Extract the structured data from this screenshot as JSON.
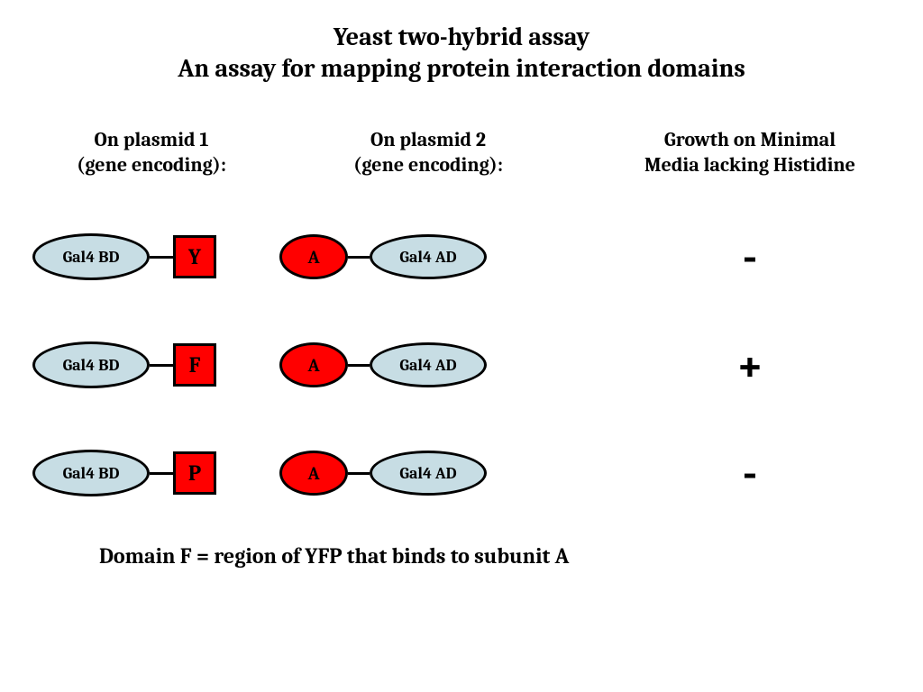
{
  "title": {
    "line1": "Yeast two-hybrid assay",
    "line2": "An assay for mapping protein interaction domains",
    "fontsize": 28
  },
  "headers": {
    "col1_line1": "On plasmid 1",
    "col1_line2": "(gene encoding):",
    "col2_line1": "On plasmid 2",
    "col2_line2": "(gene encoding):",
    "col3_line1": "Growth on Minimal",
    "col3_line2": "Media lacking Histidine",
    "fontsize": 22
  },
  "labels": {
    "gal4_bd": "Gal4 BD",
    "gal4_ad": "Gal4 AD",
    "a": "A",
    "bd_fontsize": 18,
    "a_fontsize": 20,
    "sq_fontsize": 24
  },
  "rows": [
    {
      "square": "Y",
      "result": "-"
    },
    {
      "square": "F",
      "result": "+"
    },
    {
      "square": "P",
      "result": "-"
    }
  ],
  "result_fontsize": 52,
  "footer": {
    "text": "Domain F = region of YFP that binds to subunit A",
    "fontsize": 24
  },
  "colors": {
    "background": "#ffffff",
    "text": "#000000",
    "ellipse_fill": "#c7dde4",
    "red": "#ff0000",
    "stroke": "#000000"
  },
  "shape": {
    "bd_ellipse_w": 130,
    "bd_ellipse_h": 52,
    "ad_ellipse_w": 130,
    "ad_ellipse_h": 50,
    "a_ellipse_w": 76,
    "a_ellipse_h": 50,
    "square_size": 48,
    "stroke_width": 3,
    "connector1_len": 26,
    "connector2_len": 24
  }
}
